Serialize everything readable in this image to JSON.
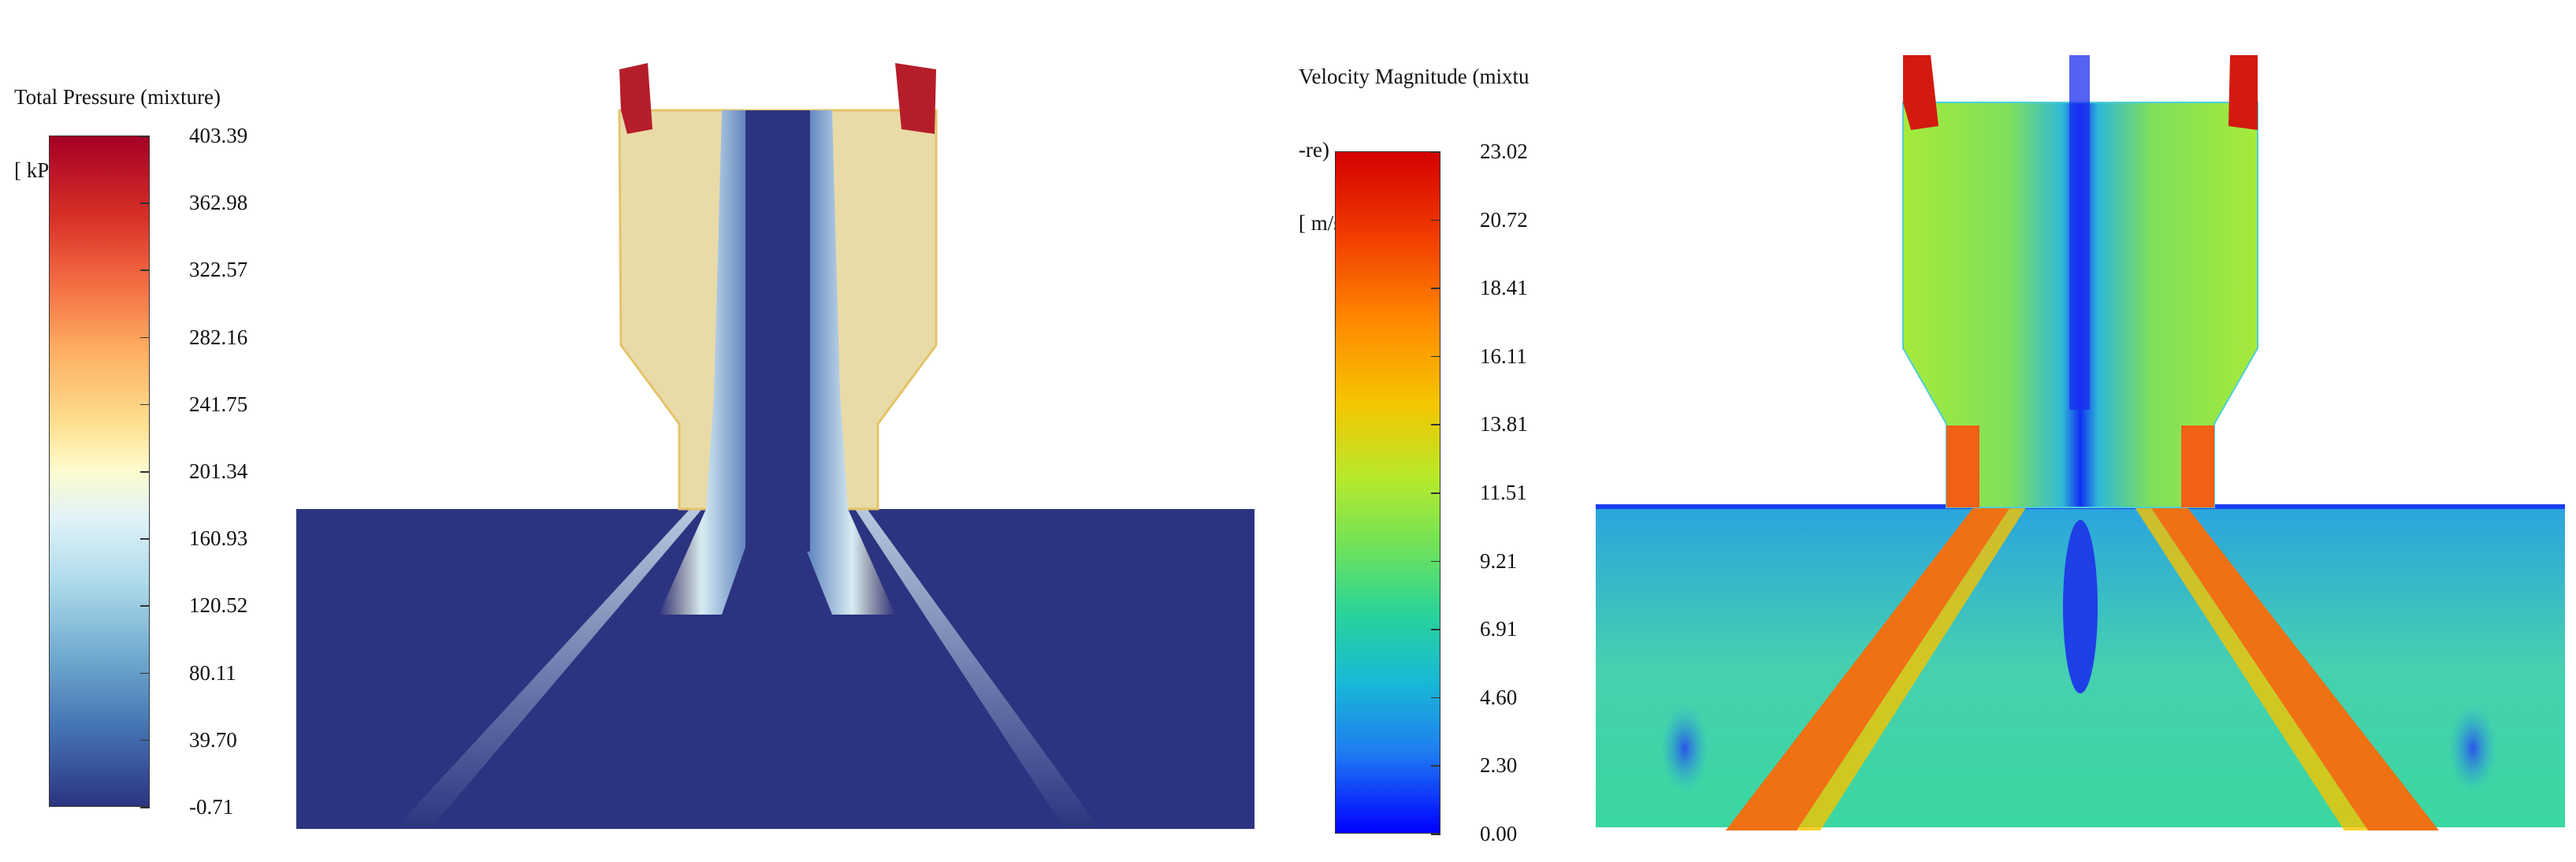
{
  "colors": {
    "background": "#ffffff",
    "pressure_low": "#2c3481",
    "pressure_mid": "#fdfbcf",
    "pressure_high": "#a50026",
    "velocity_low": "#0000ff",
    "velocity_mid": "#9cf02c",
    "velocity_high": "#d40000",
    "chamber_fill": "#e9dba8"
  },
  "left_legend": {
    "title_line1": "Total Pressure (mixture)",
    "title_line2": "[ kPa ]",
    "ticks": [
      "403.39",
      "362.98",
      "322.57",
      "282.16",
      "241.75",
      "201.34",
      "160.93",
      "120.52",
      "80.11",
      "39.70",
      "-0.71"
    ],
    "max": 403.39,
    "min": -0.71,
    "colormap": "red-yellow-blue diverging"
  },
  "right_legend": {
    "title_line1": "Velocity Magnitude (mixtu",
    "title_line2": "-re)",
    "title_line3": "[ m/s ]",
    "ticks": [
      "23.02",
      "20.72",
      "18.41",
      "16.11",
      "13.81",
      "11.51",
      "9.21",
      "6.91",
      "4.60",
      "2.30",
      "0.00"
    ],
    "max": 23.02,
    "min": 0.0,
    "colormap": "jet"
  }
}
